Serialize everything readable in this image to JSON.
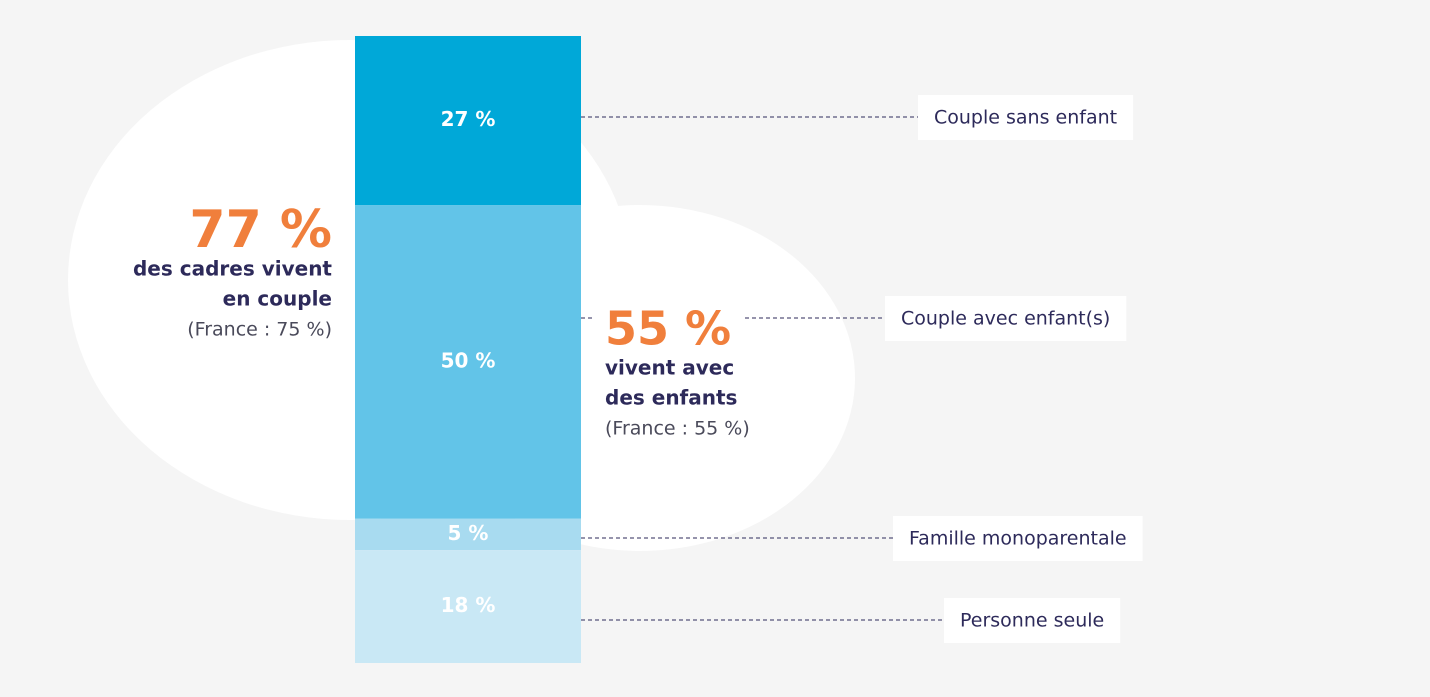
{
  "chart_data": {
    "type": "stacked-bar",
    "categories": [
      "Couple sans enfant",
      "Couple avec enfant(s)",
      "Famille monoparentale",
      "Personne seule"
    ],
    "values": [
      27,
      50,
      5,
      18
    ],
    "value_labels": [
      "27 %",
      "50 %",
      "5 %",
      "18 %"
    ],
    "colors": [
      "#00a8d8",
      "#62c4e8",
      "#a8dbf0",
      "#c9e8f5"
    ],
    "ylim": [
      0,
      100
    ],
    "annotations": [
      {
        "headline": "77 %",
        "lines": [
          "des cadres vivent",
          "en couple"
        ],
        "note": "(France : 75 %)"
      },
      {
        "headline": "55 %",
        "lines": [
          "vivent avec",
          "des enfants"
        ],
        "note": "(France : 55 %)"
      }
    ]
  }
}
